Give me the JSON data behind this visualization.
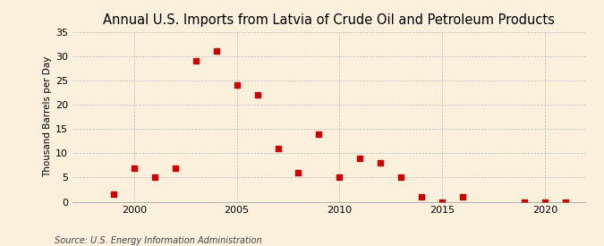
{
  "title": "Annual U.S. Imports from Latvia of Crude Oil and Petroleum Products",
  "ylabel": "Thousand Barrels per Day",
  "source": "Source: U.S. Energy Information Administration",
  "background_color": "#faf0dc",
  "years": [
    1999,
    2000,
    2001,
    2002,
    2003,
    2004,
    2005,
    2006,
    2007,
    2008,
    2009,
    2010,
    2011,
    2012,
    2013,
    2014,
    2015,
    2016,
    2019,
    2020,
    2021
  ],
  "values": [
    1.5,
    7,
    5,
    7,
    29,
    31,
    24,
    22,
    11,
    6,
    14,
    5,
    9,
    8,
    5,
    1,
    0,
    1,
    0,
    0,
    0
  ],
  "marker_color": "#cc0000",
  "xlim": [
    1997,
    2022
  ],
  "ylim": [
    0,
    35
  ],
  "yticks": [
    0,
    5,
    10,
    15,
    20,
    25,
    30,
    35
  ],
  "xticks": [
    2000,
    2005,
    2010,
    2015,
    2020
  ],
  "title_fontsize": 10.5,
  "ylabel_fontsize": 7.5,
  "tick_fontsize": 8,
  "source_fontsize": 7
}
